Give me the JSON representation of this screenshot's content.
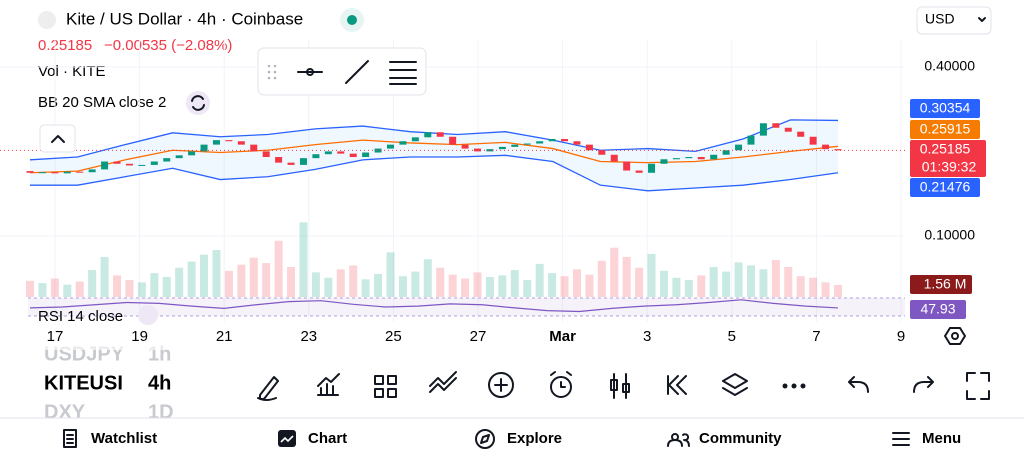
{
  "header": {
    "title": "Kite / US Dollar · 4h · Coinbase",
    "currency": "USD",
    "price": "0.25185",
    "change": "−0.00535 (−2.08%)",
    "volume_legend": "Vol · KITE",
    "indicator_legend": "BB 20 SMA close 2"
  },
  "chart": {
    "type": "candlestick",
    "up_color": "#089981",
    "down_color": "#f23645",
    "first_open": 0.215,
    "close": [
      0.212,
      0.213,
      0.211,
      0.214,
      0.213,
      0.218,
      0.232,
      0.228,
      0.225,
      0.226,
      0.232,
      0.238,
      0.243,
      0.25,
      0.262,
      0.27,
      0.268,
      0.262,
      0.25,
      0.24,
      0.23,
      0.226,
      0.238,
      0.245,
      0.25,
      0.246,
      0.24,
      0.248,
      0.255,
      0.262,
      0.268,
      0.275,
      0.284,
      0.276,
      0.262,
      0.255,
      0.25,
      0.254,
      0.258,
      0.262,
      0.264,
      0.268,
      0.272,
      0.268,
      0.262,
      0.252,
      0.244,
      0.232,
      0.216,
      0.212,
      0.228,
      0.236,
      0.238,
      0.24,
      0.236,
      0.244,
      0.252,
      0.262,
      0.278,
      0.3,
      0.292,
      0.285,
      0.276,
      0.262,
      0.254,
      0.25185
    ],
    "volume": [
      2.1,
      1.8,
      2.4,
      1.6,
      2,
      3.5,
      5.2,
      2.8,
      2.2,
      1.9,
      3.1,
      2.6,
      3.8,
      4.6,
      5.5,
      6.1,
      3.4,
      4.2,
      5.1,
      4.4,
      7.3,
      3.9,
      9.7,
      3.2,
      2.5,
      3.6,
      4.1,
      2.3,
      3,
      5.8,
      2.7,
      3.3,
      4.9,
      3.8,
      2.9,
      2.4,
      3.2,
      2.6,
      2.8,
      3.5,
      2.2,
      4.3,
      3.1,
      2.7,
      3.6,
      2.9,
      4.7,
      6.4,
      5.2,
      3.8,
      5.6,
      3.4,
      2.5,
      2.2,
      2.8,
      3.9,
      3.3,
      4.5,
      4.1,
      3.6,
      4.8,
      3.9,
      2.7,
      2.5,
      1.9,
      1.56
    ],
    "bb_upper": [
      0.235,
      0.24,
      0.262,
      0.283,
      0.276,
      0.28,
      0.29,
      0.295,
      0.285,
      0.28,
      0.285,
      0.27,
      0.252,
      0.255,
      0.25,
      0.272,
      0.306,
      0.305
    ],
    "bb_basis": [
      0.212,
      0.215,
      0.235,
      0.252,
      0.248,
      0.252,
      0.262,
      0.27,
      0.265,
      0.262,
      0.266,
      0.255,
      0.232,
      0.23,
      0.232,
      0.24,
      0.25,
      0.259
    ],
    "bb_lower": [
      0.19,
      0.19,
      0.205,
      0.22,
      0.2,
      0.205,
      0.218,
      0.235,
      0.24,
      0.24,
      0.243,
      0.232,
      0.19,
      0.18,
      0.185,
      0.19,
      0.2,
      0.212
    ],
    "rsi": [
      48,
      50,
      55,
      60,
      58,
      52,
      47,
      55,
      62,
      64,
      56,
      50,
      52,
      57,
      55,
      48,
      42,
      40,
      47,
      52,
      55,
      60,
      66,
      58,
      52,
      47.93
    ],
    "ylim": [
      -0.014,
      0.439
    ],
    "yticks": [
      {
        "value": 0.4,
        "label": "0.40000"
      },
      {
        "value": 0.1,
        "label": "0.10000"
      }
    ],
    "x_labels": [
      "17",
      "19",
      "21",
      "23",
      "25",
      "27",
      "Mar",
      "3",
      "5",
      "7",
      "9"
    ]
  },
  "price_tags": {
    "bb_upper": "0.30354",
    "bb_basis": "0.25915",
    "last": "0.25185",
    "countdown": "01:39:32",
    "bb_lower": "0.21476",
    "volume": "1.56 M",
    "rsi": "47.93",
    "rsi_legend": "RSI 14 close"
  },
  "watchlist": [
    {
      "symbol": "USDJPY",
      "interval": "1h"
    },
    {
      "symbol": "KITEUSI",
      "interval": "4h"
    },
    {
      "symbol": "DXY",
      "interval": "1D"
    }
  ],
  "nav": [
    "Watchlist",
    "Chart",
    "Explore",
    "Community",
    "Menu"
  ]
}
